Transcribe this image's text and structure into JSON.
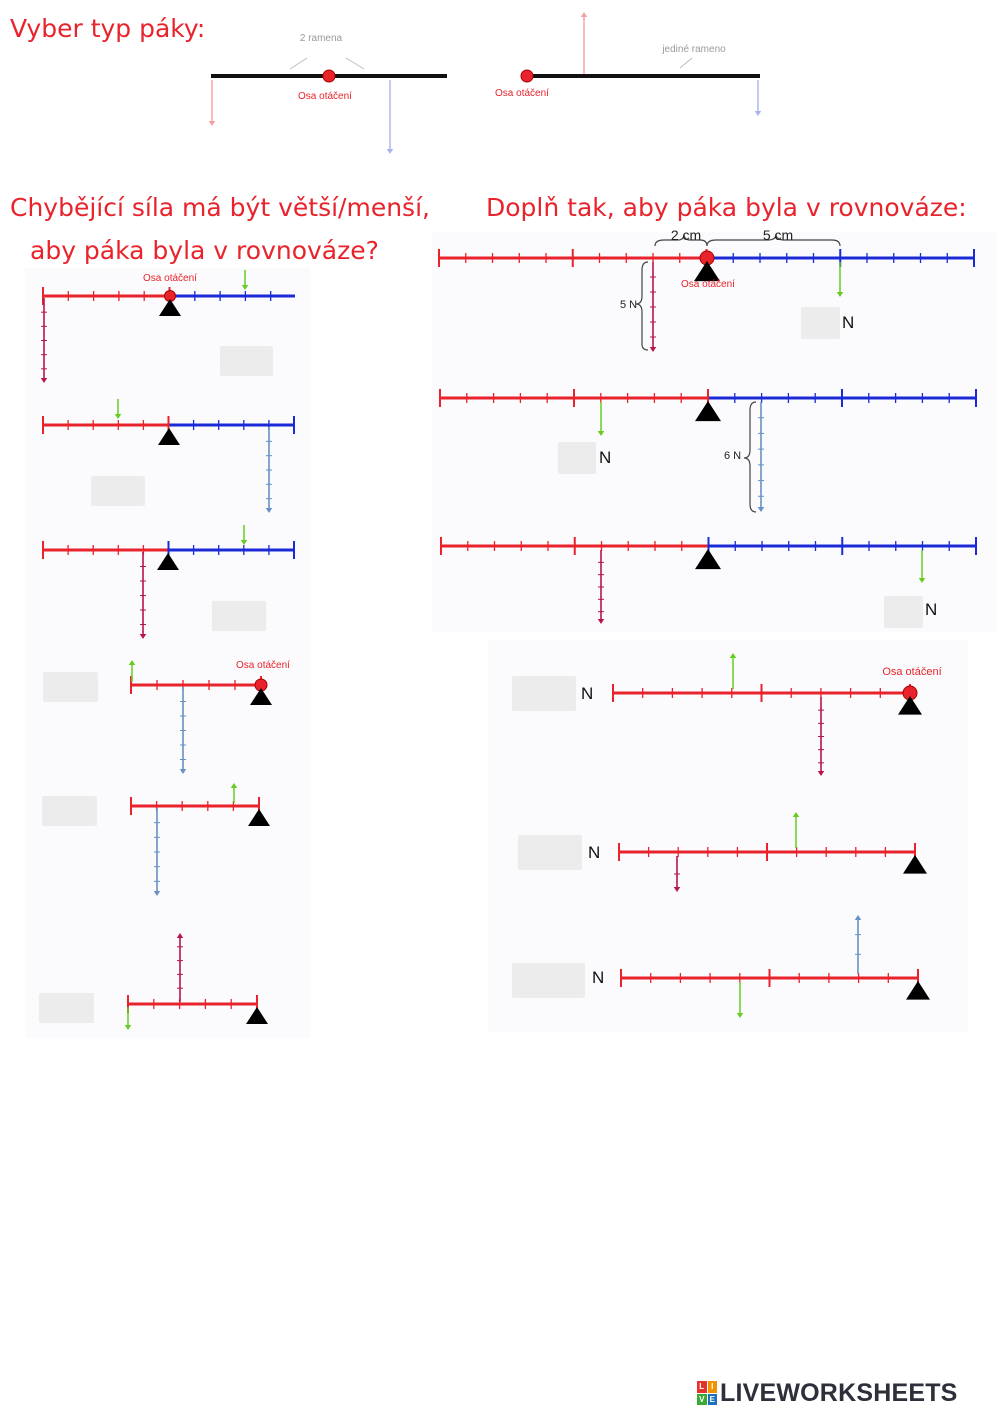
{
  "headings": {
    "select_type": "Vyber typ páky:",
    "bigger_smaller_line1": "Chybějící síla má být větší/menší,",
    "bigger_smaller_line2": "aby páka byla v rovnováze?",
    "complete": "Doplň tak, aby páka byla v rovnováze:"
  },
  "diagram_labels": {
    "two_arms": "2 ramena",
    "single_arm": "jediné rameno",
    "pivot": "Osa otáčení",
    "dist_left": "2 cm",
    "dist_right": "5 cm",
    "force_5": "5 N",
    "force_6": "6 N"
  },
  "unit_newton": "N",
  "colors": {
    "heading": "#e8232b",
    "lever_red": "#e8232b",
    "lever_blue": "#1a2ad6",
    "arrow_crimson": "#b8154a",
    "arrow_blue": "#6790c4",
    "arrow_green": "#66cc22",
    "answer_box": "#ececec"
  },
  "logo": {
    "text": "LIVEWORKSHEETS",
    "icon_letters": [
      "L",
      "I",
      "V",
      "E"
    ],
    "icon_colors": [
      "#e6332a",
      "#f39200",
      "#3aaa35",
      "#1d71b8"
    ]
  }
}
